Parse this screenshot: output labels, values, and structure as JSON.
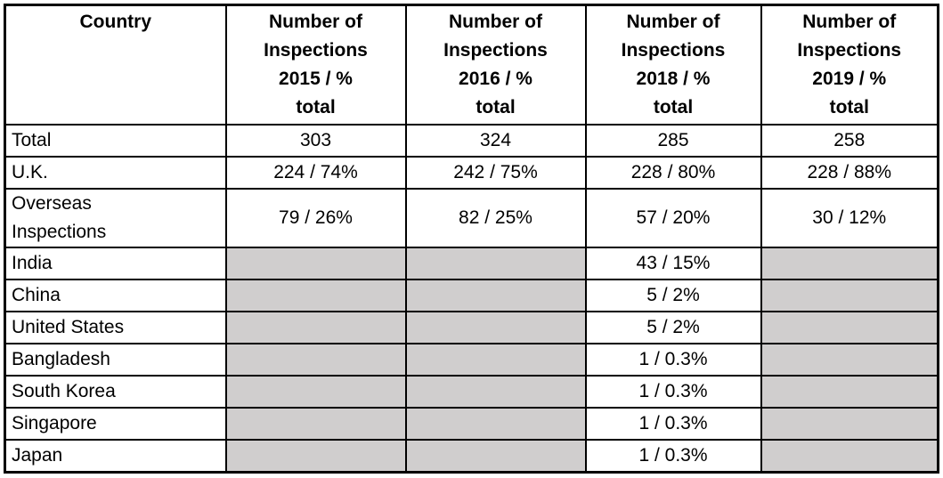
{
  "table": {
    "columns": [
      {
        "label": "Country"
      },
      {
        "label": "Number of\nInspections\n2015 / %\ntotal"
      },
      {
        "label": "Number of\nInspections\n2016 / %\ntotal"
      },
      {
        "label": "Number of\nInspections\n2018 / %\ntotal"
      },
      {
        "label": "Number of\nInspections\n2019 / %\ntotal"
      }
    ],
    "rows": [
      {
        "country": "Total",
        "values": [
          "303",
          "324",
          "285",
          "258"
        ]
      },
      {
        "country": "U.K.",
        "values": [
          "224 / 74%",
          "242 / 75%",
          "228 / 80%",
          "228 / 88%"
        ]
      },
      {
        "country": "Overseas\nInspections",
        "values": [
          "79 / 26%",
          "82 / 25%",
          "57 / 20%",
          "30 / 12%"
        ]
      },
      {
        "country": "India",
        "values": [
          null,
          null,
          "43 / 15%",
          null
        ]
      },
      {
        "country": "China",
        "values": [
          null,
          null,
          "5 / 2%",
          null
        ]
      },
      {
        "country": "United States",
        "values": [
          null,
          null,
          "5 / 2%",
          null
        ]
      },
      {
        "country": "Bangladesh",
        "values": [
          null,
          null,
          "1 / 0.3%",
          null
        ]
      },
      {
        "country": "South Korea",
        "values": [
          null,
          null,
          "1 / 0.3%",
          null
        ]
      },
      {
        "country": "Singapore",
        "values": [
          null,
          null,
          "1 / 0.3%",
          null
        ]
      },
      {
        "country": "Japan",
        "values": [
          null,
          null,
          "1 / 0.3%",
          null
        ]
      }
    ],
    "colors": {
      "empty_cell": "#d0cece",
      "border": "#000000",
      "background": "#ffffff",
      "text": "#000000"
    }
  }
}
